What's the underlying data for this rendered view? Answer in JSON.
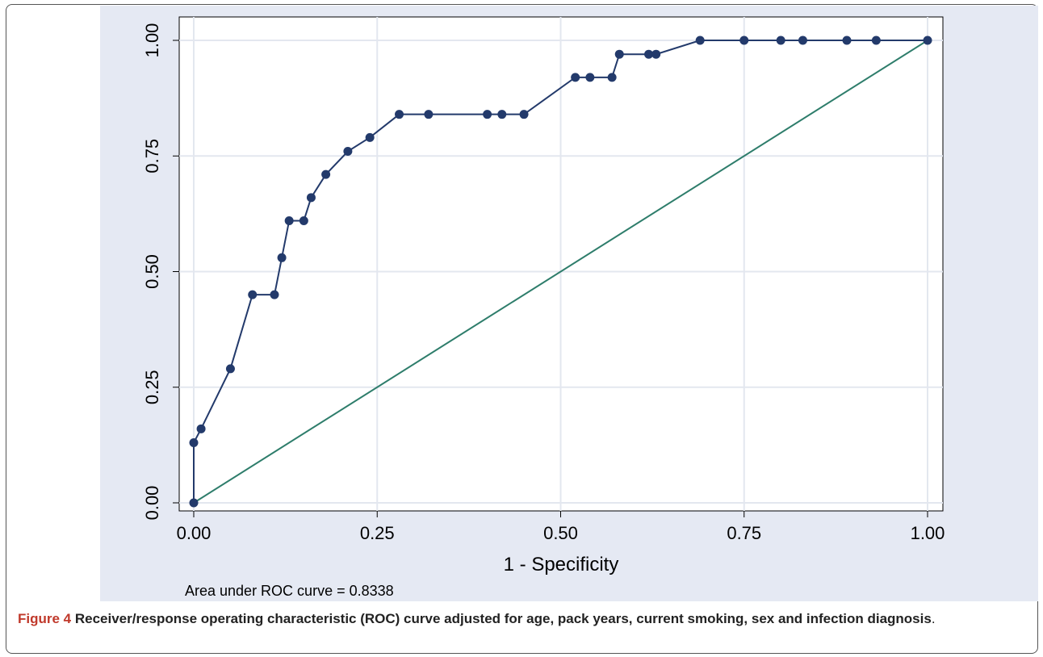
{
  "chart_data": {
    "type": "line",
    "xlabel": "1 - Specificity",
    "ylabel": "",
    "xlim": [
      0,
      1
    ],
    "ylim": [
      0,
      1
    ],
    "x_ticks": [
      "0.00",
      "0.25",
      "0.50",
      "0.75",
      "1.00"
    ],
    "y_ticks": [
      "0.00",
      "0.25",
      "0.50",
      "0.75",
      "1.00"
    ],
    "grid": true,
    "series": [
      {
        "color": "#233a6b",
        "markers": true,
        "x": [
          0,
          0,
          0.01,
          0.05,
          0.08,
          0.11,
          0.12,
          0.13,
          0.15,
          0.16,
          0.18,
          0.21,
          0.24,
          0.28,
          0.32,
          0.4,
          0.42,
          0.45,
          0.52,
          0.54,
          0.57,
          0.58,
          0.62,
          0.63,
          0.69,
          0.75,
          0.8,
          0.83,
          0.89,
          0.93,
          1.0
        ],
        "y": [
          0,
          0.13,
          0.16,
          0.29,
          0.45,
          0.45,
          0.53,
          0.61,
          0.61,
          0.66,
          0.71,
          0.76,
          0.79,
          0.84,
          0.84,
          0.84,
          0.84,
          0.84,
          0.92,
          0.92,
          0.92,
          0.97,
          0.97,
          0.97,
          1.0,
          1.0,
          1.0,
          1.0,
          1.0,
          1.0,
          1.0
        ]
      },
      {
        "color": "#2e7d6b",
        "markers": false,
        "x": [
          0,
          1
        ],
        "y": [
          0,
          1
        ]
      }
    ],
    "note": "Area under ROC curve = 0.8338"
  },
  "caption": {
    "label": "Figure 4",
    "text": " Receiver/response operating characteristic (ROC) curve adjusted for age, pack years, current smoking, sex and infection diagnosis",
    "end": "."
  }
}
